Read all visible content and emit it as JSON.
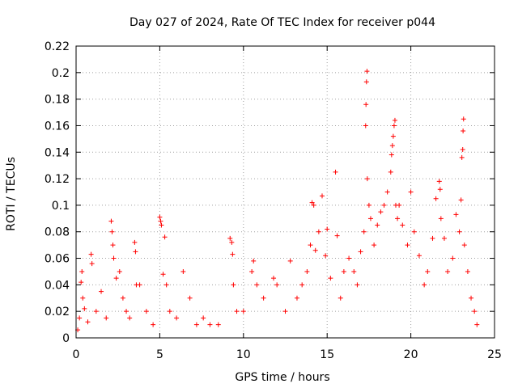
{
  "chart_data": {
    "type": "scatter",
    "title": "Day 027 of 2024, Rate Of TEC Index for receiver p044",
    "xlabel": "GPS time / hours",
    "ylabel": "ROTI / TECUs",
    "xlim": [
      0,
      25
    ],
    "ylim": [
      0,
      0.22
    ],
    "xticks": [
      "0",
      "5",
      "10",
      "15",
      "20",
      "25"
    ],
    "yticks": [
      "0",
      "0.02",
      "0.04",
      "0.06",
      "0.08",
      "0.1",
      "0.12",
      "0.14",
      "0.16",
      "0.18",
      "0.2",
      "0.22"
    ],
    "grid": true,
    "marker": "plus",
    "color": "#ff0000",
    "series": [
      {
        "name": "",
        "points": [
          [
            0.1,
            0.006
          ],
          [
            0.2,
            0.015
          ],
          [
            0.3,
            0.042
          ],
          [
            0.35,
            0.05
          ],
          [
            0.4,
            0.03
          ],
          [
            0.5,
            0.022
          ],
          [
            0.7,
            0.012
          ],
          [
            0.9,
            0.063
          ],
          [
            0.95,
            0.056
          ],
          [
            1.2,
            0.02
          ],
          [
            1.5,
            0.035
          ],
          [
            1.8,
            0.015
          ],
          [
            2.1,
            0.088
          ],
          [
            2.15,
            0.08
          ],
          [
            2.2,
            0.07
          ],
          [
            2.25,
            0.06
          ],
          [
            2.4,
            0.045
          ],
          [
            2.6,
            0.05
          ],
          [
            2.8,
            0.03
          ],
          [
            3.0,
            0.02
          ],
          [
            3.2,
            0.015
          ],
          [
            3.5,
            0.072
          ],
          [
            3.55,
            0.065
          ],
          [
            3.6,
            0.04
          ],
          [
            3.8,
            0.04
          ],
          [
            4.2,
            0.02
          ],
          [
            4.6,
            0.01
          ],
          [
            5.0,
            0.091
          ],
          [
            5.05,
            0.088
          ],
          [
            5.1,
            0.085
          ],
          [
            5.2,
            0.048
          ],
          [
            5.3,
            0.076
          ],
          [
            5.4,
            0.04
          ],
          [
            5.6,
            0.02
          ],
          [
            6.0,
            0.015
          ],
          [
            6.4,
            0.05
          ],
          [
            6.8,
            0.03
          ],
          [
            7.2,
            0.01
          ],
          [
            7.6,
            0.015
          ],
          [
            8.0,
            0.01
          ],
          [
            8.5,
            0.01
          ],
          [
            9.2,
            0.075
          ],
          [
            9.3,
            0.072
          ],
          [
            9.35,
            0.063
          ],
          [
            9.4,
            0.04
          ],
          [
            9.6,
            0.02
          ],
          [
            10.0,
            0.02
          ],
          [
            10.5,
            0.05
          ],
          [
            10.6,
            0.058
          ],
          [
            10.8,
            0.04
          ],
          [
            11.2,
            0.03
          ],
          [
            11.8,
            0.045
          ],
          [
            12.0,
            0.04
          ],
          [
            12.5,
            0.02
          ],
          [
            12.8,
            0.058
          ],
          [
            13.2,
            0.03
          ],
          [
            13.5,
            0.04
          ],
          [
            13.8,
            0.05
          ],
          [
            14.0,
            0.07
          ],
          [
            14.1,
            0.102
          ],
          [
            14.2,
            0.1
          ],
          [
            14.3,
            0.066
          ],
          [
            14.5,
            0.08
          ],
          [
            14.7,
            0.107
          ],
          [
            14.9,
            0.062
          ],
          [
            15.0,
            0.082
          ],
          [
            15.2,
            0.045
          ],
          [
            15.5,
            0.125
          ],
          [
            15.6,
            0.077
          ],
          [
            15.8,
            0.03
          ],
          [
            16.0,
            0.05
          ],
          [
            16.3,
            0.06
          ],
          [
            16.6,
            0.05
          ],
          [
            16.8,
            0.04
          ],
          [
            17.0,
            0.065
          ],
          [
            17.2,
            0.08
          ],
          [
            17.3,
            0.16
          ],
          [
            17.32,
            0.176
          ],
          [
            17.35,
            0.193
          ],
          [
            17.38,
            0.201
          ],
          [
            17.4,
            0.12
          ],
          [
            17.5,
            0.1
          ],
          [
            17.6,
            0.09
          ],
          [
            17.8,
            0.07
          ],
          [
            18.0,
            0.085
          ],
          [
            18.2,
            0.095
          ],
          [
            18.4,
            0.1
          ],
          [
            18.6,
            0.11
          ],
          [
            18.8,
            0.125
          ],
          [
            18.85,
            0.138
          ],
          [
            18.9,
            0.145
          ],
          [
            18.95,
            0.152
          ],
          [
            19.0,
            0.16
          ],
          [
            19.05,
            0.164
          ],
          [
            19.1,
            0.1
          ],
          [
            19.2,
            0.09
          ],
          [
            19.3,
            0.1
          ],
          [
            19.5,
            0.085
          ],
          [
            19.8,
            0.07
          ],
          [
            20.0,
            0.11
          ],
          [
            20.2,
            0.08
          ],
          [
            20.5,
            0.062
          ],
          [
            20.8,
            0.04
          ],
          [
            21.0,
            0.05
          ],
          [
            21.3,
            0.075
          ],
          [
            21.5,
            0.105
          ],
          [
            21.7,
            0.118
          ],
          [
            21.75,
            0.112
          ],
          [
            21.8,
            0.09
          ],
          [
            22.0,
            0.075
          ],
          [
            22.2,
            0.05
          ],
          [
            22.5,
            0.06
          ],
          [
            22.7,
            0.093
          ],
          [
            22.9,
            0.08
          ],
          [
            23.0,
            0.104
          ],
          [
            23.05,
            0.136
          ],
          [
            23.1,
            0.142
          ],
          [
            23.12,
            0.156
          ],
          [
            23.15,
            0.165
          ],
          [
            23.2,
            0.07
          ],
          [
            23.4,
            0.05
          ],
          [
            23.6,
            0.03
          ],
          [
            23.8,
            0.02
          ],
          [
            23.95,
            0.01
          ]
        ]
      }
    ]
  }
}
